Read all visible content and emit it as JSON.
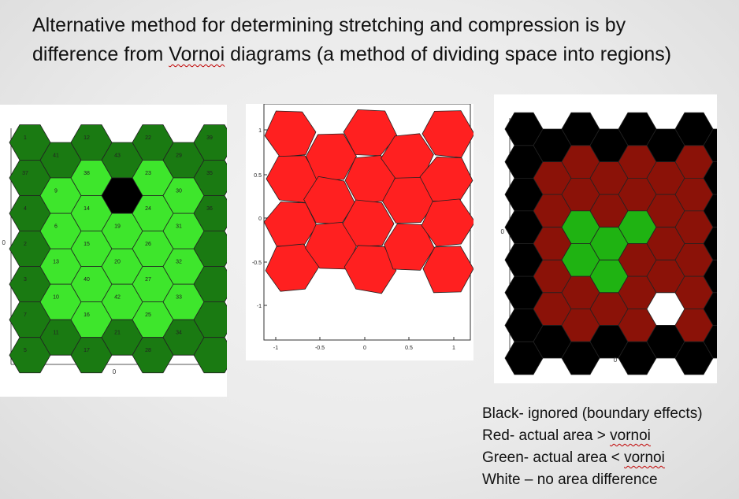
{
  "slide": {
    "title_before": "Alternative method for determining stretching and compression is by difference from ",
    "title_squiggle": "Vornoi",
    "title_after": " diagrams (a method of dividing space into regions)"
  },
  "panel1": {
    "cell_labels": [
      "1",
      "37",
      "4",
      "2",
      "3",
      "7",
      "5",
      "41",
      "9",
      "6",
      "13",
      "10",
      "11",
      "12",
      "38",
      "14",
      "15",
      "40",
      "16",
      "17",
      "43",
      "18",
      "19",
      "20",
      "42",
      "21",
      "22",
      "23",
      "24",
      "26",
      "27",
      "25",
      "28",
      "29",
      "30",
      "31",
      "32",
      "33",
      "34",
      "39",
      "35",
      "36"
    ],
    "axis_zero_x": "0",
    "axis_zero_y": "0",
    "colors": {
      "boundary": "#1a7a12",
      "interior": "#3ee62c",
      "hole": "#000000"
    }
  },
  "panel2": {
    "x_ticks": [
      "-1",
      "-0.5",
      "0",
      "0.5",
      "1"
    ],
    "y_ticks": [
      "1",
      "0.5",
      "0",
      "-0.5",
      "-1"
    ],
    "color": "#ff2020"
  },
  "panel3": {
    "axis_zero_x": "0",
    "axis_zero_y": "0",
    "colors": {
      "black": "#000000",
      "red": "#8b1208",
      "green": "#1fb312",
      "white": "#ffffff"
    }
  },
  "legend": {
    "line1": "Black- ignored (boundary effects)",
    "line2_before": "Red- actual area > ",
    "line2_squiggle": "vornoi",
    "line3_before": "Green- actual area < ",
    "line3_squiggle": "vornoi",
    "line4": "White – no area difference"
  }
}
